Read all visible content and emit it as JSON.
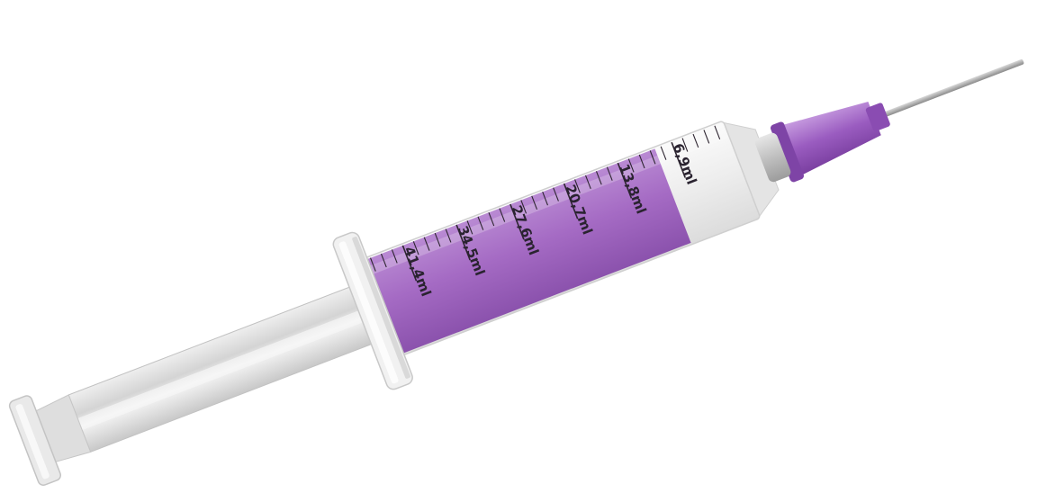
{
  "syringe": {
    "fill_level_ml": 41.4,
    "scale_labels": [
      "6,9ml",
      "13,8ml",
      "20,7ml",
      "27,6ml",
      "34,5ml",
      "41,4ml"
    ],
    "colors": {
      "liquid": "#a56bc4",
      "needle_hub": "#9a5cc0",
      "barrel": "#f2f2f2",
      "plunger": "#d9d9d9"
    }
  }
}
